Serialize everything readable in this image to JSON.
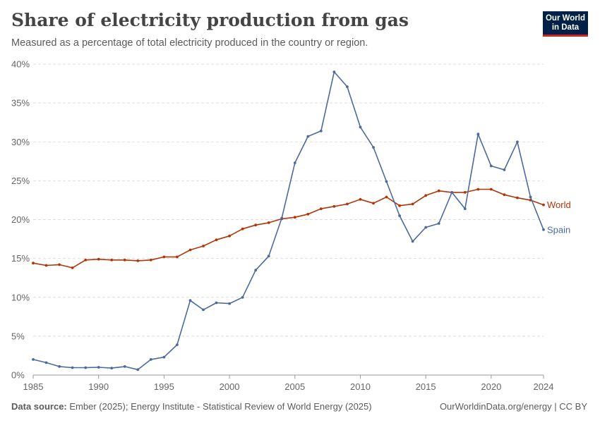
{
  "header": {
    "title": "Share of electricity production from gas",
    "subtitle": "Measured as a percentage of total electricity produced in the country or region.",
    "logo_line1": "Our World",
    "logo_line2": "in Data"
  },
  "footer": {
    "source_label": "Data source:",
    "source_text": "Ember (2025); Energy Institute - Statistical Review of World Energy (2025)",
    "right_text": "OurWorldinData.org/energy | CC BY"
  },
  "chart_data": {
    "type": "line",
    "title": "Share of electricity production from gas",
    "xlim": [
      1985,
      2024
    ],
    "ylim": [
      0,
      40
    ],
    "x_ticks": [
      1985,
      1990,
      1995,
      2000,
      2005,
      2010,
      2015,
      2020,
      2024
    ],
    "y_ticks": [
      0,
      5,
      10,
      15,
      20,
      25,
      30,
      35,
      40
    ],
    "y_tick_labels": [
      "0%",
      "5%",
      "10%",
      "15%",
      "20%",
      "25%",
      "30%",
      "35%",
      "40%"
    ],
    "grid": "horizontal-dashed",
    "legend": "inline-right",
    "x": [
      1985,
      1986,
      1987,
      1988,
      1989,
      1990,
      1991,
      1992,
      1993,
      1994,
      1995,
      1996,
      1997,
      1998,
      1999,
      2000,
      2001,
      2002,
      2003,
      2004,
      2005,
      2006,
      2007,
      2008,
      2009,
      2010,
      2011,
      2012,
      2013,
      2014,
      2015,
      2016,
      2017,
      2018,
      2019,
      2020,
      2021,
      2022,
      2023,
      2024
    ],
    "series": [
      {
        "name": "World",
        "color": "#b13507",
        "values": [
          14.4,
          14.1,
          14.2,
          13.8,
          14.8,
          14.9,
          14.8,
          14.8,
          14.7,
          14.8,
          15.2,
          15.2,
          16.1,
          16.6,
          17.4,
          17.9,
          18.8,
          19.3,
          19.6,
          20.1,
          20.3,
          20.7,
          21.4,
          21.7,
          22.0,
          22.6,
          22.1,
          22.9,
          21.8,
          22.0,
          23.1,
          23.7,
          23.5,
          23.5,
          23.9,
          23.9,
          23.2,
          22.8,
          22.5,
          21.9
        ]
      },
      {
        "name": "Spain",
        "color": "#4c6a9c",
        "values": [
          2.0,
          1.6,
          1.1,
          0.95,
          0.95,
          1.0,
          0.9,
          1.1,
          0.7,
          2.0,
          2.3,
          3.9,
          9.6,
          8.4,
          9.3,
          9.2,
          10.0,
          13.5,
          15.3,
          20.2,
          27.3,
          30.7,
          31.4,
          39.0,
          37.1,
          31.9,
          29.3,
          24.9,
          20.5,
          17.2,
          19.0,
          19.5,
          23.5,
          21.4,
          31.0,
          26.9,
          26.4,
          30.0,
          22.9,
          18.7
        ]
      }
    ]
  }
}
